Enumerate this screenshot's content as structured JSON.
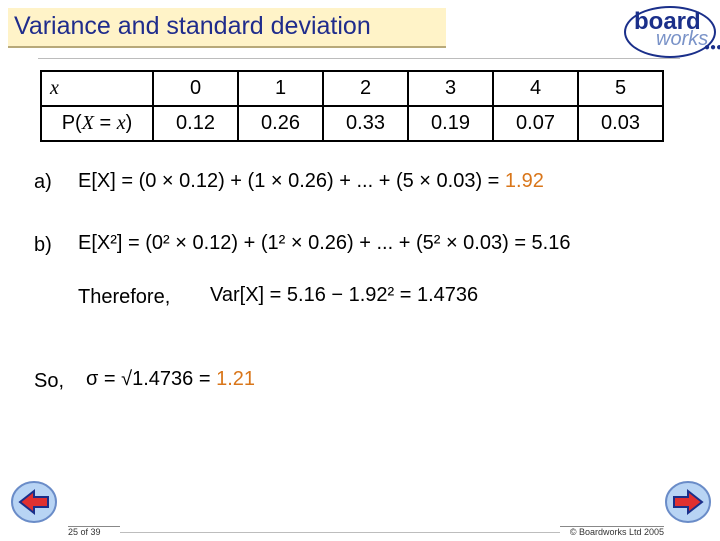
{
  "header": {
    "title": "Variance and standard deviation",
    "logo_top": "board",
    "logo_bottom": "works"
  },
  "table": {
    "row1": {
      "label": "x",
      "values": [
        "0",
        "1",
        "2",
        "3",
        "4",
        "5"
      ]
    },
    "row2": {
      "label_prefix": "P(",
      "label_var": "X",
      "label_mid": " = ",
      "label_x": "x",
      "label_suffix": ")",
      "values": [
        "0.12",
        "0.26",
        "0.33",
        "0.19",
        "0.07",
        "0.03"
      ]
    }
  },
  "part_a": {
    "label": "a)",
    "lhs": "E[X] = (0 × 0.12) + (1 × 0.26) + ... + (5 × 0.03) = ",
    "result": "1.92"
  },
  "part_b": {
    "label": "b)",
    "lhs": "E[X²] = (0² × 0.12) + (1² × 0.26) + ... + (5² × 0.03) = 5.16"
  },
  "therefore": {
    "label": "Therefore,",
    "expr": "Var[X] = 5.16 − 1.92² = 1.4736"
  },
  "so": {
    "label": "So,",
    "expr": "σ = √1.4736 = ",
    "result": "1.21"
  },
  "footer": {
    "page": "25 of 39",
    "copyright": "© Boardworks Ltd 2005"
  },
  "colors": {
    "title": "#1f2c8c",
    "title_bg": "#fff3c8",
    "highlight": "#d9761a"
  },
  "icons": [
    "prev-arrow-icon",
    "next-arrow-icon"
  ]
}
